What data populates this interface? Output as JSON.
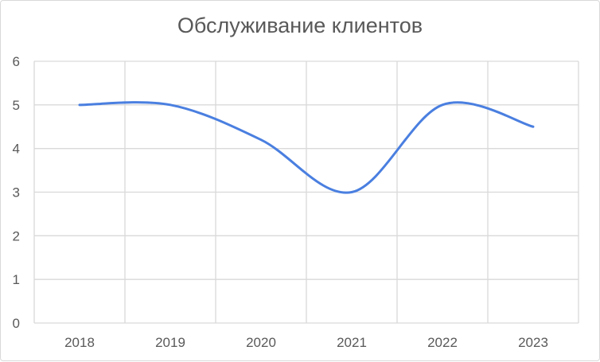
{
  "chart_data": {
    "type": "line",
    "title": "Обслуживание клиентов",
    "xlabel": "",
    "ylabel": "",
    "categories": [
      "2018",
      "2019",
      "2020",
      "2021",
      "2022",
      "2023"
    ],
    "series": [
      {
        "values": [
          5,
          5,
          4.2,
          3,
          5,
          4.5
        ]
      }
    ],
    "ylim": [
      0,
      6
    ],
    "yticks": [
      "0",
      "1",
      "2",
      "3",
      "4",
      "5",
      "6"
    ],
    "grid": true,
    "smooth": true,
    "line_color": "#4A7FE0",
    "grid_color": "#d9d9d9"
  }
}
